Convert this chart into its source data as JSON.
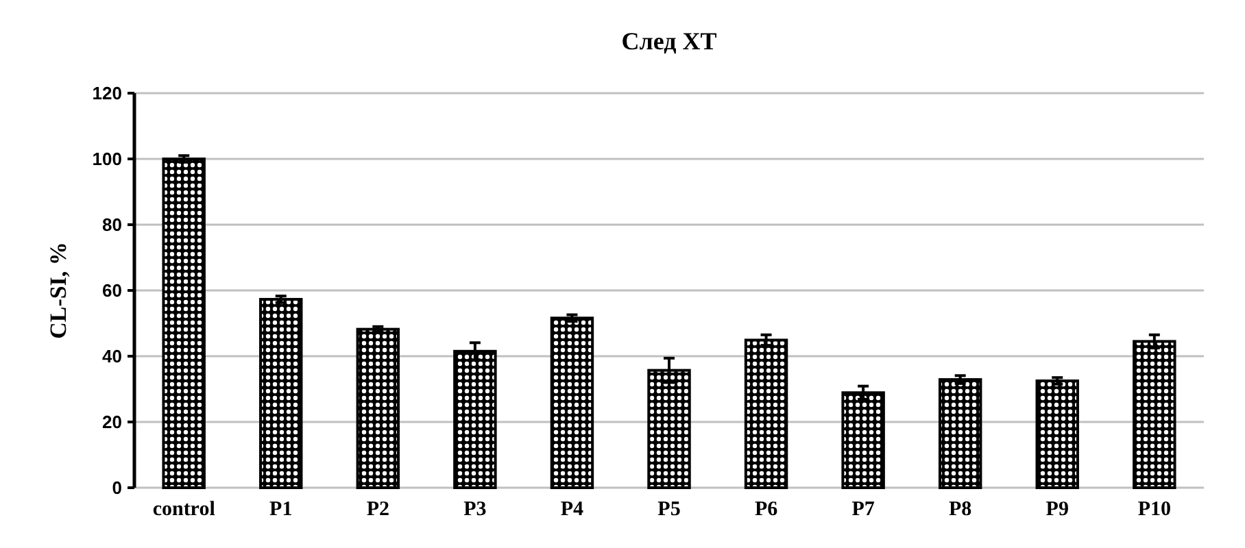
{
  "chart_data": {
    "type": "bar",
    "title": "След ХТ",
    "ylabel": "CL-SI, %",
    "categories": [
      "control",
      "P1",
      "P2",
      "P3",
      "P4",
      "P5",
      "P6",
      "P7",
      "P8",
      "P9",
      "P10"
    ],
    "values": [
      100,
      57.3,
      48.2,
      41.5,
      51.6,
      35.7,
      44.9,
      28.9,
      32.9,
      32.5,
      44.5
    ],
    "errors": [
      1,
      1,
      0.8,
      2.6,
      1,
      3.7,
      1.6,
      2,
      1.2,
      1,
      2
    ],
    "color": "#000000",
    "ylim": [
      0,
      120
    ],
    "yticks": [
      0,
      20,
      40,
      60,
      80,
      100,
      120
    ],
    "grid": "y"
  }
}
